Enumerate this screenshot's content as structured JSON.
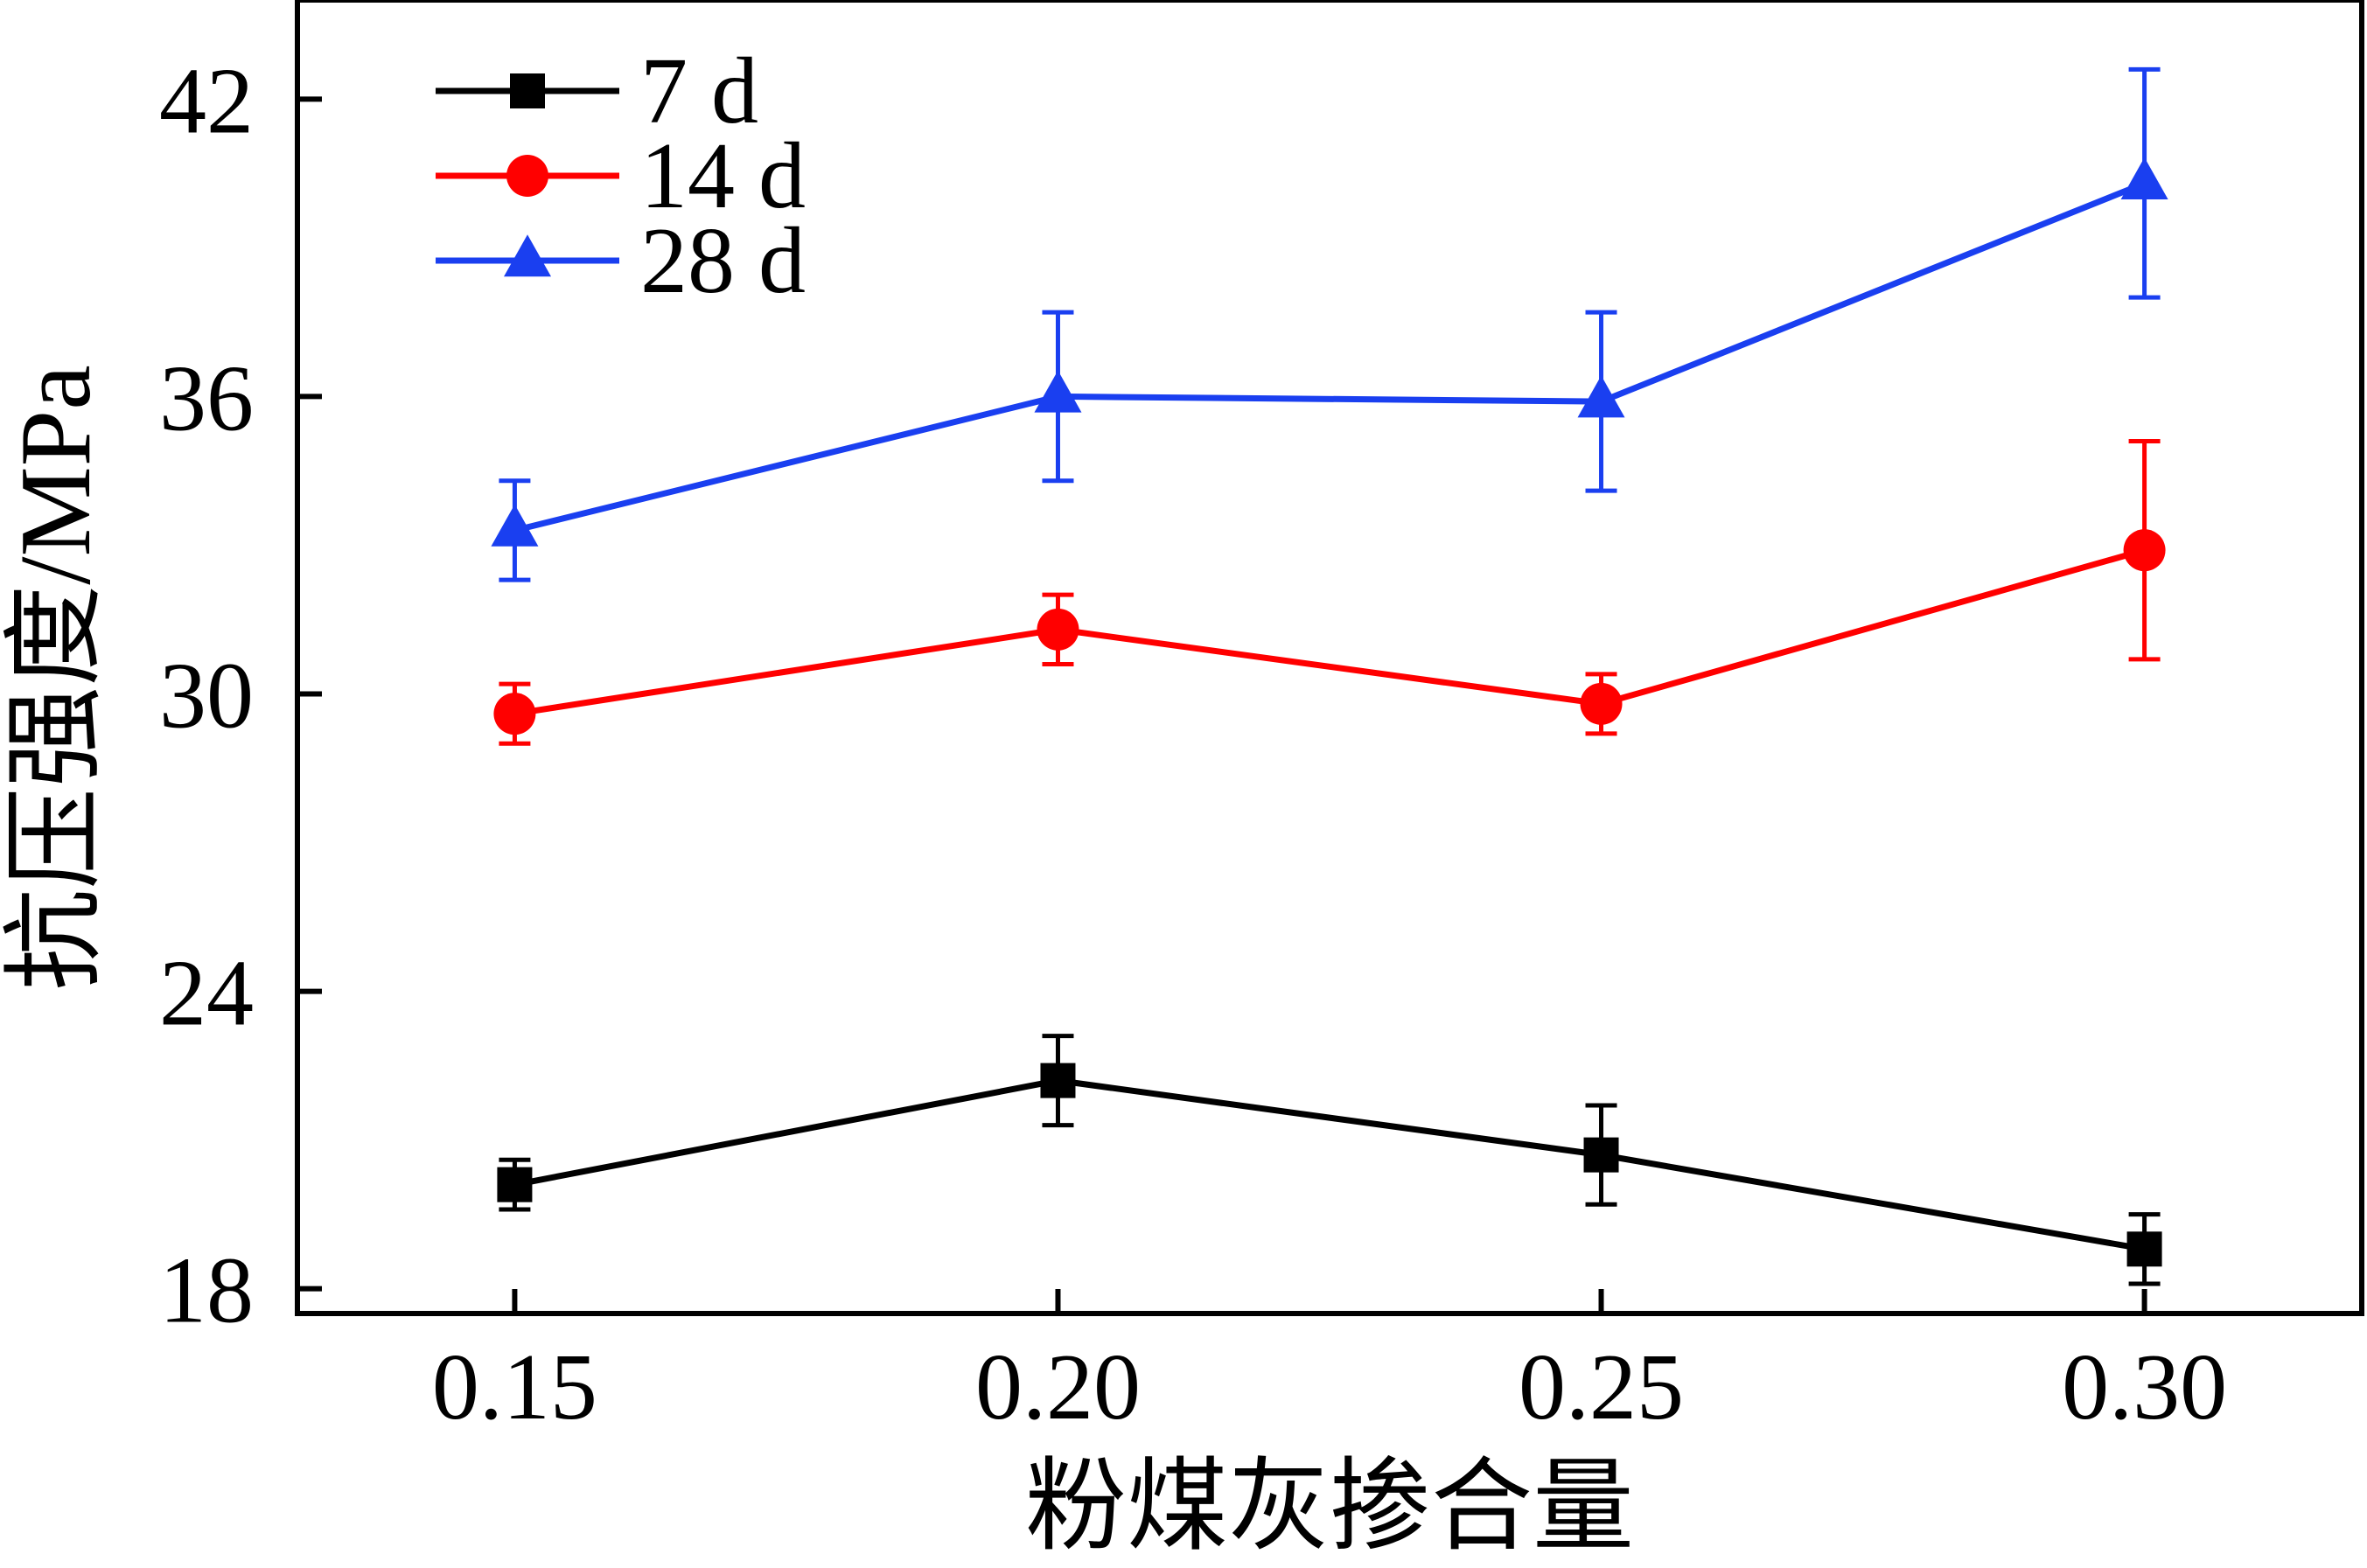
{
  "chart_data": {
    "type": "line",
    "title": "",
    "xlabel": "粉煤灰掺合量",
    "ylabel": "抗压强度/MPa",
    "x": [
      0.15,
      0.2,
      0.25,
      0.3
    ],
    "x_tick_labels": [
      "0.15",
      "0.20",
      "0.25",
      "0.30"
    ],
    "xlim": [
      0.13,
      0.32
    ],
    "y_ticks": [
      18,
      24,
      30,
      36,
      42
    ],
    "ylim": [
      17.5,
      44
    ],
    "grid": false,
    "legend_position": "top-left",
    "series": [
      {
        "name": "7 d",
        "marker": "square",
        "color": "#000000",
        "values": [
          20.1,
          22.2,
          20.7,
          18.8
        ],
        "errors": [
          0.5,
          0.9,
          1.0,
          0.7
        ]
      },
      {
        "name": "14 d",
        "marker": "circle",
        "color": "#ff0000",
        "values": [
          29.6,
          31.3,
          29.8,
          32.9
        ],
        "errors": [
          0.6,
          0.7,
          0.6,
          2.2
        ]
      },
      {
        "name": "28 d",
        "marker": "triangle",
        "color": "#1a3ff0",
        "values": [
          33.3,
          36.0,
          35.9,
          40.3
        ],
        "errors": [
          1.0,
          1.7,
          1.8,
          2.3
        ]
      }
    ]
  }
}
